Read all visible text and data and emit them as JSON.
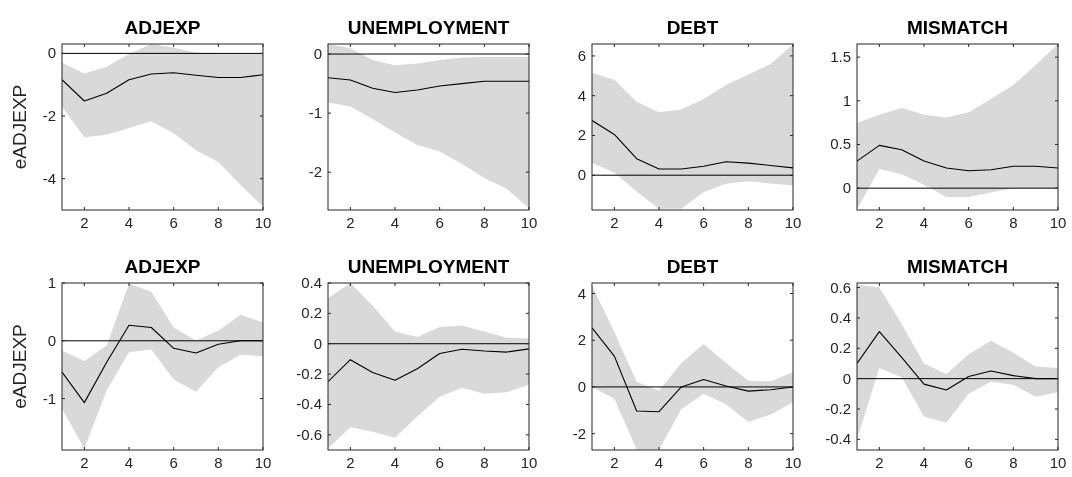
{
  "chart_data": [
    {
      "type": "line",
      "title": "ADJEXP",
      "ylabel": "eADJEXP",
      "x": [
        1,
        2,
        3,
        4,
        5,
        6,
        7,
        8,
        9,
        10
      ],
      "xlim": [
        1,
        10
      ],
      "xticks": [
        2,
        4,
        6,
        8,
        10
      ],
      "ylim": [
        -5,
        0.3
      ],
      "yticks": [
        -4,
        -2,
        0
      ],
      "ref_lines": [
        {
          "axis": "y",
          "value": 0,
          "color": "#000000"
        }
      ],
      "series": [
        {
          "color": "#000000",
          "values": [
            -0.84,
            -1.52,
            -1.27,
            -0.84,
            -0.66,
            -0.62,
            -0.7,
            -0.77,
            -0.77,
            -0.68
          ],
          "lower": [
            -1.7,
            -2.68,
            -2.6,
            -2.38,
            -2.17,
            -2.55,
            -3.09,
            -3.47,
            -4.2,
            -4.9
          ],
          "upper": [
            -0.3,
            -0.64,
            -0.43,
            -0.02,
            0.3,
            0.18,
            0.03,
            0,
            0,
            0
          ]
        }
      ]
    },
    {
      "type": "line",
      "title": "UNEMPLOYMENT",
      "x": [
        1,
        2,
        3,
        4,
        5,
        6,
        7,
        8,
        9,
        10
      ],
      "xlim": [
        1,
        10
      ],
      "xticks": [
        2,
        4,
        6,
        8,
        10
      ],
      "ylim": [
        -2.64,
        0.17
      ],
      "yticks": [
        -2,
        -1,
        0
      ],
      "ref_lines": [
        {
          "axis": "y",
          "value": 0,
          "color": "#000000"
        }
      ],
      "series": [
        {
          "color": "#000000",
          "values": [
            -0.4,
            -0.44,
            -0.58,
            -0.65,
            -0.61,
            -0.54,
            -0.5,
            -0.46,
            -0.46,
            -0.46
          ],
          "lower": [
            -0.82,
            -0.89,
            -1.1,
            -1.33,
            -1.54,
            -1.65,
            -1.86,
            -2.1,
            -2.28,
            -2.61
          ],
          "upper": [
            0.17,
            0.1,
            -0.1,
            -0.19,
            -0.16,
            -0.1,
            -0.06,
            -0.05,
            -0.05,
            -0.05
          ]
        }
      ]
    },
    {
      "type": "line",
      "title": "DEBT",
      "x": [
        1,
        2,
        3,
        4,
        5,
        6,
        7,
        8,
        9,
        10
      ],
      "xlim": [
        1,
        10
      ],
      "xticks": [
        2,
        4,
        6,
        8,
        10
      ],
      "ylim": [
        -1.75,
        6.6
      ],
      "yticks": [
        0,
        2,
        4,
        6
      ],
      "ref_lines": [
        {
          "axis": "y",
          "value": 0,
          "color": "#000000"
        }
      ],
      "series": [
        {
          "color": "#000000",
          "values": [
            2.75,
            2.05,
            0.83,
            0.31,
            0.31,
            0.45,
            0.68,
            0.61,
            0.49,
            0.37
          ],
          "lower": [
            0.61,
            0.14,
            -0.82,
            -1.69,
            -1.69,
            -0.85,
            -0.43,
            -0.3,
            -0.42,
            -0.52
          ],
          "upper": [
            5.15,
            4.8,
            3.69,
            3.17,
            3.3,
            3.83,
            4.54,
            5.06,
            5.6,
            6.57
          ]
        }
      ]
    },
    {
      "type": "line",
      "title": "MISMATCH",
      "x": [
        1,
        2,
        3,
        4,
        5,
        6,
        7,
        8,
        9,
        10
      ],
      "xlim": [
        1,
        10
      ],
      "xticks": [
        2,
        4,
        6,
        8,
        10
      ],
      "ylim": [
        -0.25,
        1.65
      ],
      "yticks": [
        0,
        0.5,
        1,
        1.5
      ],
      "ref_lines": [
        {
          "axis": "y",
          "value": 0,
          "color": "#000000"
        }
      ],
      "series": [
        {
          "color": "#000000",
          "values": [
            0.31,
            0.49,
            0.44,
            0.31,
            0.23,
            0.2,
            0.21,
            0.25,
            0.25,
            0.23
          ],
          "lower": [
            -0.24,
            0.22,
            0.16,
            0.04,
            -0.1,
            -0.1,
            -0.05,
            0,
            0,
            0
          ],
          "upper": [
            0.75,
            0.84,
            0.92,
            0.84,
            0.81,
            0.87,
            1.02,
            1.18,
            1.41,
            1.65
          ]
        }
      ]
    },
    {
      "type": "line",
      "title": "ADJEXP",
      "ylabel": "eADJEXP",
      "x": [
        1,
        2,
        3,
        4,
        5,
        6,
        7,
        8,
        9,
        10
      ],
      "xlim": [
        1,
        10
      ],
      "xticks": [
        2,
        4,
        6,
        8,
        10
      ],
      "ylim": [
        -1.89,
        1
      ],
      "yticks": [
        -1,
        0,
        1
      ],
      "ref_lines": [
        {
          "axis": "y",
          "value": 0,
          "color": "#000000"
        }
      ],
      "series": [
        {
          "color": "#000000",
          "values": [
            -0.54,
            -1.07,
            -0.37,
            0.27,
            0.23,
            -0.13,
            -0.21,
            -0.06,
            0,
            0
          ],
          "lower": [
            -1.17,
            -1.87,
            -0.86,
            -0.2,
            -0.15,
            -0.67,
            -0.88,
            -0.46,
            -0.24,
            -0.27
          ],
          "upper": [
            -0.17,
            -0.35,
            -0.08,
            0.99,
            0.85,
            0.23,
            0,
            0.18,
            0.45,
            0.32
          ]
        }
      ]
    },
    {
      "type": "line",
      "title": "UNEMPLOYMENT",
      "x": [
        1,
        2,
        3,
        4,
        5,
        6,
        7,
        8,
        9,
        10
      ],
      "xlim": [
        1,
        10
      ],
      "xticks": [
        2,
        4,
        6,
        8,
        10
      ],
      "ylim": [
        -0.7,
        0.4
      ],
      "yticks": [
        -0.6,
        -0.4,
        -0.2,
        0,
        0.2,
        0.4
      ],
      "ref_lines": [
        {
          "axis": "y",
          "value": 0,
          "color": "#000000"
        }
      ],
      "series": [
        {
          "color": "#000000",
          "values": [
            -0.25,
            -0.105,
            -0.19,
            -0.24,
            -0.165,
            -0.064,
            -0.036,
            -0.048,
            -0.055,
            -0.034
          ],
          "lower": [
            -0.69,
            -0.55,
            -0.58,
            -0.62,
            -0.48,
            -0.35,
            -0.29,
            -0.33,
            -0.32,
            -0.27
          ],
          "upper": [
            0.3,
            0.4,
            0.25,
            0.08,
            0.045,
            0.11,
            0.12,
            0.08,
            0.04,
            0.035
          ]
        }
      ]
    },
    {
      "type": "line",
      "title": "DEBT",
      "x": [
        1,
        2,
        3,
        4,
        5,
        6,
        7,
        8,
        9,
        10
      ],
      "xlim": [
        1,
        10
      ],
      "xticks": [
        2,
        4,
        6,
        8,
        10
      ],
      "ylim": [
        -2.7,
        4.45
      ],
      "yticks": [
        -2,
        0,
        2,
        4
      ],
      "ref_lines": [
        {
          "axis": "y",
          "value": 0,
          "color": "#000000"
        }
      ],
      "series": [
        {
          "color": "#000000",
          "values": [
            2.53,
            1.32,
            -1.03,
            -1.06,
            0,
            0.32,
            0.04,
            -0.18,
            -0.12,
            0
          ],
          "lower": [
            0,
            -0.51,
            -2.68,
            -2.68,
            -0.96,
            -0.29,
            -0.74,
            -1.5,
            -1.18,
            -0.66
          ],
          "upper": [
            4.34,
            2.35,
            0.22,
            -0.15,
            1.03,
            1.84,
            1.03,
            0.26,
            0.24,
            0.63
          ]
        }
      ]
    },
    {
      "type": "line",
      "title": "MISMATCH",
      "x": [
        1,
        2,
        3,
        4,
        5,
        6,
        7,
        8,
        9,
        10
      ],
      "xlim": [
        1,
        10
      ],
      "xticks": [
        2,
        4,
        6,
        8,
        10
      ],
      "ylim": [
        -0.47,
        0.63
      ],
      "yticks": [
        -0.4,
        -0.2,
        0,
        0.2,
        0.4,
        0.6
      ],
      "ref_lines": [
        {
          "axis": "y",
          "value": 0,
          "color": "#000000"
        }
      ],
      "series": [
        {
          "color": "#000000",
          "values": [
            0.1,
            0.31,
            0.14,
            -0.036,
            -0.075,
            0.014,
            0.05,
            0.02,
            0,
            0
          ],
          "lower": [
            -0.4,
            0.07,
            0.01,
            -0.25,
            -0.29,
            -0.1,
            -0.02,
            -0.04,
            -0.12,
            -0.09
          ],
          "upper": [
            0.62,
            0.6,
            0.36,
            0.1,
            0.03,
            0.16,
            0.25,
            0.17,
            0.08,
            0.07
          ]
        }
      ]
    }
  ]
}
